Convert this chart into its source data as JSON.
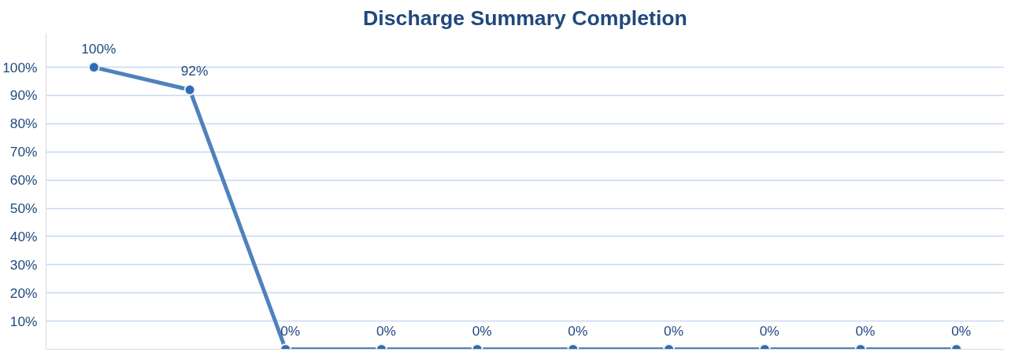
{
  "chart_data": {
    "type": "line",
    "title": "Discharge Summary Completion",
    "categories": [
      null,
      null,
      null,
      null,
      null,
      null,
      null,
      null,
      null,
      null
    ],
    "series": [
      {
        "color": "#4f81bd",
        "values": [
          100,
          92,
          0,
          0,
          0,
          0,
          0,
          0,
          0,
          0
        ],
        "value_labels": [
          "100%",
          "92%",
          "0%",
          "0%",
          "0%",
          "0%",
          "0%",
          "0%",
          "0%",
          "0%"
        ]
      }
    ],
    "ylim": [
      0,
      112
    ],
    "yticks": [
      {
        "value": 10,
        "label": "10%"
      },
      {
        "value": 20,
        "label": "20%"
      },
      {
        "value": 30,
        "label": "30%"
      },
      {
        "value": 40,
        "label": "40%"
      },
      {
        "value": 50,
        "label": "50%"
      },
      {
        "value": 60,
        "label": "60%"
      },
      {
        "value": 70,
        "label": "70%"
      },
      {
        "value": 80,
        "label": "80%"
      },
      {
        "value": 90,
        "label": "90%"
      },
      {
        "value": 100,
        "label": "100%"
      }
    ],
    "grid": "y",
    "marker": "circle",
    "line_style": "solid"
  }
}
